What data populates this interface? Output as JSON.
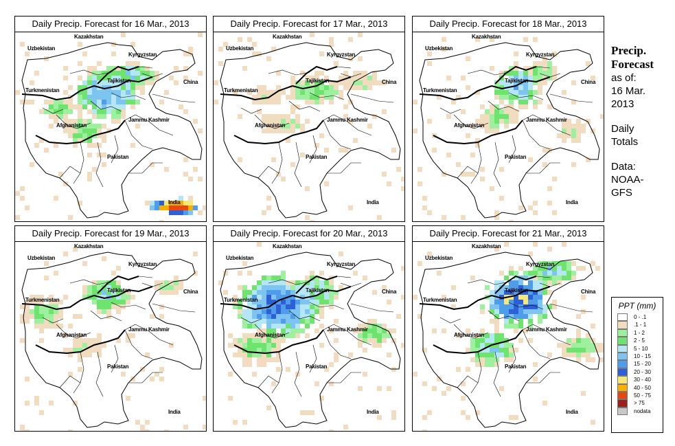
{
  "panels": [
    {
      "title": "Daily Precip. Forecast for  16 Mar., 2013",
      "scenario": 0
    },
    {
      "title": "Daily Precip. Forecast for  17 Mar., 2013",
      "scenario": 1
    },
    {
      "title": "Daily Precip. Forecast for  18 Mar., 2013",
      "scenario": 2
    },
    {
      "title": "Daily Precip. Forecast for  19 Mar., 2013",
      "scenario": 3
    },
    {
      "title": "Daily Precip. Forecast for  20 Mar., 2013",
      "scenario": 4
    },
    {
      "title": "Daily Precip. Forecast for  21 Mar., 2013",
      "scenario": 5
    }
  ],
  "map_labels": {
    "kazakhstan": "Kazakhstan",
    "uzbekistan": "Uzbekistan",
    "kyrgyzstan": "Kyrgyzstan",
    "tajikistan": "Tajikistan",
    "china": "China",
    "turkmenistan": "Turkmenistan",
    "afghanistan": "Afghanistan",
    "jammu_kashmir": "Jammu Kashmir",
    "pakistan": "Pakistan",
    "india": "India"
  },
  "sidebar": {
    "title_line1": "Precip.",
    "title_line2": "Forecast",
    "asof": "as of:",
    "date_line1": "16 Mar.",
    "date_line2": "2013",
    "daily": "Daily",
    "totals": "Totals",
    "data_label": "Data:",
    "source_line1": "NOAA-",
    "source_line2": "GFS"
  },
  "legend": {
    "title": "PPT (mm)",
    "items": [
      {
        "label": "0 - .1",
        "color": "#ffffff"
      },
      {
        "label": ".1 - 1",
        "color": "#f2dcc0"
      },
      {
        "label": "1 - 2",
        "color": "#9df09d"
      },
      {
        "label": "2 - 5",
        "color": "#6ee46e"
      },
      {
        "label": "5 - 10",
        "color": "#b4e6f5"
      },
      {
        "label": "10 - 15",
        "color": "#7ec4f0"
      },
      {
        "label": "15 - 20",
        "color": "#4f9ceb"
      },
      {
        "label": "20 - 30",
        "color": "#2d5fd6"
      },
      {
        "label": "30 - 40",
        "color": "#f5e878"
      },
      {
        "label": "40 - 50",
        "color": "#f8b000"
      },
      {
        "label": "50 - 75",
        "color": "#e84810"
      },
      {
        "label": "> 75",
        "color": "#9a2018"
      },
      {
        "label": "nodata",
        "color": "#c8c8c8"
      }
    ]
  }
}
